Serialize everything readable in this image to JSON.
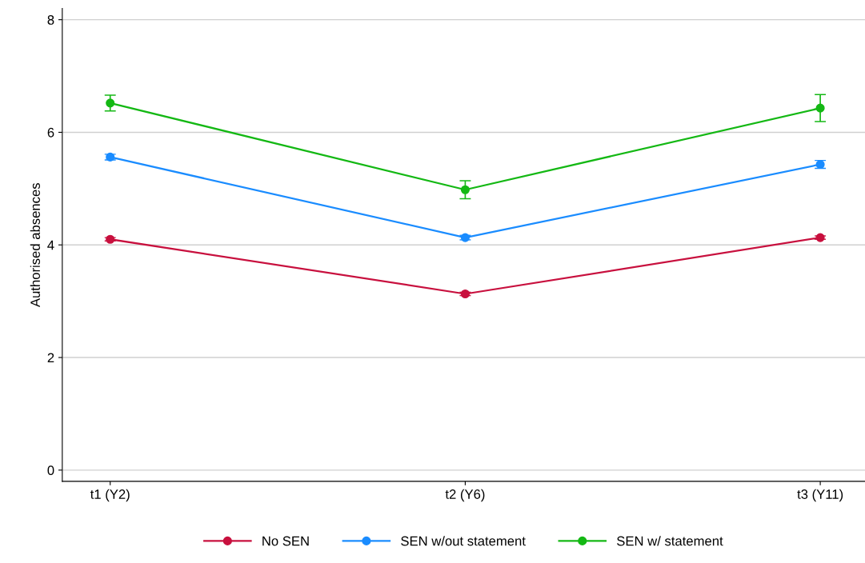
{
  "chart_data": {
    "type": "line",
    "ylabel": "Authorised absences",
    "categories": [
      "t1 (Y2)",
      "t2 (Y6)",
      "t3 (Y11)"
    ],
    "series": [
      {
        "name": "No SEN",
        "color": "#c8103e",
        "values": [
          4.1,
          3.13,
          4.13
        ],
        "errors": [
          0.03,
          0.03,
          0.03
        ]
      },
      {
        "name": "SEN w/out statement",
        "color": "#1a8cff",
        "values": [
          5.56,
          4.13,
          5.43
        ],
        "errors": [
          0.05,
          0.04,
          0.07
        ]
      },
      {
        "name": "SEN w/ statement",
        "color": "#14b814",
        "values": [
          6.52,
          4.98,
          6.43
        ],
        "errors": [
          0.14,
          0.16,
          0.24
        ]
      }
    ],
    "ylim": [
      -0.2,
      8.2
    ],
    "yticks": [
      0,
      2,
      4,
      6,
      8
    ],
    "grid": "y",
    "legend": "bottom",
    "marker": "circle",
    "line_style": "solid"
  }
}
